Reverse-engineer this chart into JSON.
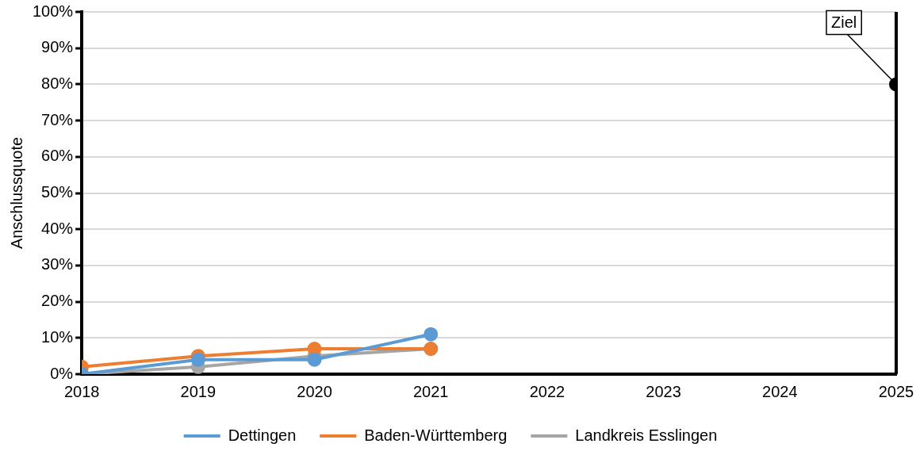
{
  "chart_data": {
    "type": "line",
    "ylabel": "Anschlussquote",
    "x": [
      2018,
      2019,
      2020,
      2021
    ],
    "series": [
      {
        "name": "Dettingen",
        "color": "#5b9bd5",
        "values": [
          0,
          4,
          4,
          11
        ]
      },
      {
        "name": "Baden-Württemberg",
        "color": "#ed7d31",
        "values": [
          2,
          5,
          7,
          7
        ]
      },
      {
        "name": "Landkreis Esslingen",
        "color": "#a5a5a5",
        "values": [
          0,
          2,
          5,
          7
        ]
      },
      {
        "type": "scatter",
        "color": "#000000",
        "x": [
          2025
        ],
        "values": [
          80
        ]
      }
    ],
    "annotations": [
      {
        "text": "Ziel",
        "x": 2025,
        "y": 80
      }
    ],
    "xlim": [
      2018,
      2025
    ],
    "xticks": [
      2018,
      2019,
      2020,
      2021,
      2022,
      2023,
      2024,
      2025
    ],
    "ylim": [
      0,
      100
    ],
    "yticks": [
      {
        "value": 0,
        "label": "0%"
      },
      {
        "value": 10,
        "label": "10%"
      },
      {
        "value": 20,
        "label": "20%"
      },
      {
        "value": 30,
        "label": "30%"
      },
      {
        "value": 40,
        "label": "40%"
      },
      {
        "value": 50,
        "label": "50%"
      },
      {
        "value": 60,
        "label": "60%"
      },
      {
        "value": 70,
        "label": "70%"
      },
      {
        "value": 80,
        "label": "80%"
      },
      {
        "value": 90,
        "label": "90%"
      },
      {
        "value": 100,
        "label": "100%"
      }
    ],
    "grid": "y",
    "legend": "bottom",
    "marker": "circle"
  }
}
